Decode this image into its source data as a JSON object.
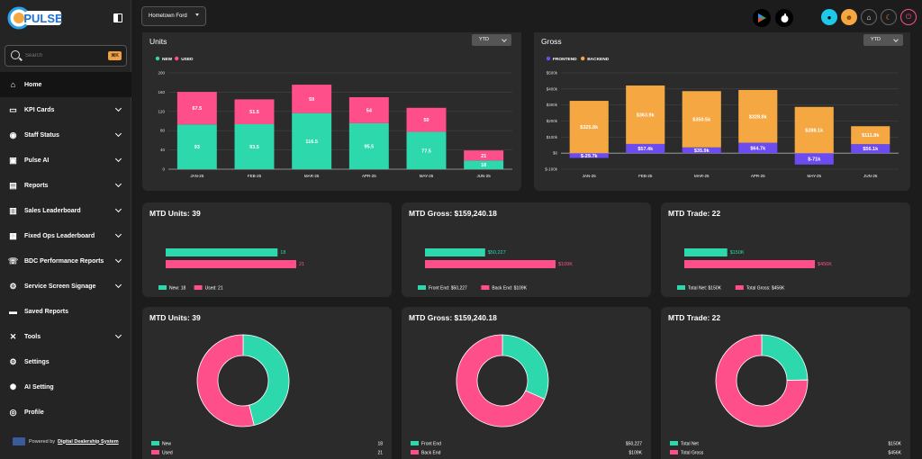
{
  "app": {
    "logo_text": "PULSE"
  },
  "search": {
    "placeholder": "Search",
    "shortcut": "⌘K"
  },
  "sidebar": {
    "items": [
      {
        "label": "Home",
        "icon": "home-icon",
        "active": true,
        "chevron": false
      },
      {
        "label": "KPI Cards",
        "icon": "monitor-icon",
        "chevron": true
      },
      {
        "label": "Staff Status",
        "icon": "user-circle-icon",
        "chevron": true
      },
      {
        "label": "Pulse AI",
        "icon": "ai-chip-icon",
        "chevron": true
      },
      {
        "label": "Reports",
        "icon": "document-icon",
        "chevron": true
      },
      {
        "label": "Sales Leaderboard",
        "icon": "podium-icon",
        "chevron": true
      },
      {
        "label": "Fixed Ops Leaderboard",
        "icon": "grid-icon",
        "chevron": true
      },
      {
        "label": "BDC Performance Reports",
        "icon": "phone-icon",
        "chevron": true
      },
      {
        "label": "Service Screen Signage",
        "icon": "service-icon",
        "chevron": true
      },
      {
        "label": "Saved Reports",
        "icon": "folder-icon",
        "chevron": false
      },
      {
        "label": "Tools",
        "icon": "tools-icon",
        "chevron": true
      },
      {
        "label": "Settings",
        "icon": "gear-icon",
        "chevron": false
      },
      {
        "label": "AI Setting",
        "icon": "ai-gear-icon",
        "chevron": false
      },
      {
        "label": "Profile",
        "icon": "profile-icon",
        "chevron": false
      }
    ],
    "powered_prefix": "Powered by",
    "powered_link": "Digital Dealership System"
  },
  "topbar": {
    "dealer": "Hometown Ford"
  },
  "colors": {
    "new": "#2ed8ad",
    "used": "#ff4f8b",
    "frontend": "#6c4cf0",
    "backend": "#f5a742",
    "bg": "#1c1c1c",
    "card": "#2b2b2b"
  },
  "units_chart": {
    "title": "Units",
    "filter": "YTD",
    "chart_data": {
      "type": "bar",
      "stacked": true,
      "categories": [
        "JAN-25",
        "FEB-25",
        "MAR-25",
        "APR-25",
        "MAY-25",
        "JUN-25"
      ],
      "series": [
        {
          "name": "NEW",
          "values": [
            93,
            93.5,
            116.5,
            95.5,
            77.5,
            18
          ],
          "labels": [
            "93",
            "93.5",
            "116.5",
            "95.5",
            "77.5",
            "18"
          ]
        },
        {
          "name": "USED",
          "values": [
            67.5,
            51.5,
            59,
            54,
            50,
            21
          ],
          "labels": [
            "67.5",
            "51.5",
            "59",
            "54",
            "50",
            "21"
          ]
        }
      ],
      "ylim": [
        0,
        200
      ],
      "yticks": [
        "0",
        "40",
        "80",
        "120",
        "160",
        "200"
      ],
      "legend": "top-left",
      "grid": true
    }
  },
  "gross_chart": {
    "title": "Gross",
    "filter": "YTD",
    "chart_data": {
      "type": "bar",
      "stacked": true,
      "categories": [
        "JAN-25",
        "FEB-25",
        "MAR-25",
        "APR-25",
        "MAY-25",
        "JUN-25"
      ],
      "series": [
        {
          "name": "FRONTEND",
          "values": [
            -29.7,
            57.4,
            35.9,
            64.7,
            -71,
            56.1
          ],
          "labels": [
            "$-29.7k",
            "$57.4k",
            "$35.9k",
            "$64.7k",
            "$-71k",
            "$56.1k"
          ]
        },
        {
          "name": "BACKEND",
          "values": [
            325.8,
            363.9,
            350.5,
            328.8,
            288.1,
            111.8
          ],
          "labels": [
            "$325.8k",
            "$363.9k",
            "$350.5k",
            "$328.8k",
            "$288.1k",
            "$111.8k"
          ]
        }
      ],
      "ylim": [
        -100,
        500
      ],
      "yticks": [
        "$-100k",
        "$0",
        "$100k",
        "$200k",
        "$300k",
        "$400k",
        "$500k"
      ],
      "legend": "top-left",
      "grid": true
    }
  },
  "mtd_bars": [
    {
      "title": "MTD Units: 39",
      "chart_data": {
        "type": "bar",
        "orientation": "horizontal",
        "categories": [
          "New",
          "Used"
        ],
        "values": [
          18,
          21
        ],
        "labels": [
          "18",
          "21"
        ],
        "max": 21
      },
      "legend": [
        "New: 18",
        "Used: 21"
      ]
    },
    {
      "title": "MTD Gross: $159,240.18",
      "chart_data": {
        "type": "bar",
        "orientation": "horizontal",
        "categories": [
          "Front End",
          "Back End"
        ],
        "values": [
          50227,
          109013
        ],
        "labels": [
          "$50,227",
          "$109K"
        ],
        "max": 109013
      },
      "legend": [
        "Front End: $50,227",
        "Back End: $109K"
      ]
    },
    {
      "title": "MTD Trade: 22",
      "chart_data": {
        "type": "bar",
        "orientation": "horizontal",
        "categories": [
          "Total Net",
          "Total Gross"
        ],
        "values": [
          150,
          456
        ],
        "labels": [
          "$150K",
          "$456K"
        ],
        "max": 456
      },
      "legend": [
        "Total Net: $150K",
        "Total Gross: $456K"
      ]
    }
  ],
  "mtd_donuts": [
    {
      "title": "MTD Units: 39",
      "chart_data": {
        "type": "pie",
        "donut": true,
        "labels": [
          "New",
          "Used"
        ],
        "values": [
          18,
          21
        ]
      },
      "legend": [
        {
          "label": "New",
          "value": "18"
        },
        {
          "label": "Used",
          "value": "21"
        }
      ]
    },
    {
      "title": "MTD Gross: $159,240.18",
      "chart_data": {
        "type": "pie",
        "donut": true,
        "labels": [
          "Front End",
          "Back End"
        ],
        "values": [
          50227,
          109013
        ]
      },
      "legend": [
        {
          "label": "Front End",
          "value": "$50,227"
        },
        {
          "label": "Back End",
          "value": "$109K"
        }
      ]
    },
    {
      "title": "MTD Trade: 22",
      "chart_data": {
        "type": "pie",
        "donut": true,
        "labels": [
          "Total Net",
          "Total Gross"
        ],
        "values": [
          150,
          456
        ]
      },
      "legend": [
        {
          "label": "Total Net",
          "value": "$150K"
        },
        {
          "label": "Total Gross",
          "value": "$456K"
        }
      ]
    }
  ]
}
